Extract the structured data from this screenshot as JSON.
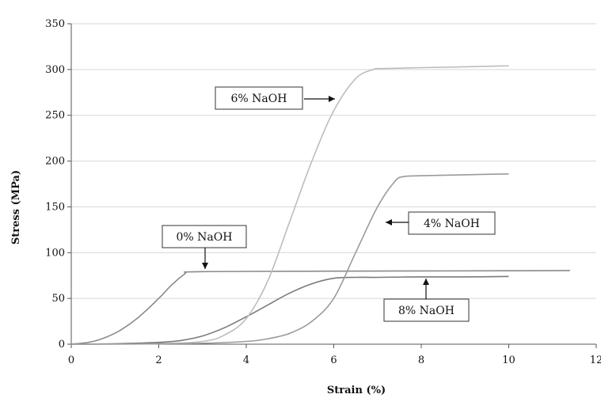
{
  "chart_data": {
    "type": "line",
    "title": "",
    "xlabel": "Strain (%)",
    "ylabel": "Stress (MPa)",
    "xlim": [
      0,
      12
    ],
    "ylim": [
      0,
      350
    ],
    "xticks": [
      0,
      2,
      4,
      6,
      8,
      10,
      12
    ],
    "yticks": [
      0,
      50,
      100,
      150,
      200,
      250,
      300,
      350
    ],
    "grid": "horizontal",
    "legend": "none",
    "series": [
      {
        "name": "0% NaOH",
        "color": "#8a8a8a",
        "x": [
          0,
          0.5,
          1.0,
          1.5,
          2.0,
          2.3,
          2.6,
          2.7,
          4,
          6,
          8,
          10,
          11.4
        ],
        "y": [
          0,
          3,
          12,
          28,
          50,
          65,
          77,
          79,
          79.5,
          79.8,
          80,
          80.2,
          80.5
        ]
      },
      {
        "name": "8% NaOH",
        "color": "#7a7a7a",
        "x": [
          0,
          1,
          2,
          2.5,
          3,
          3.5,
          4,
          4.5,
          5,
          5.5,
          6,
          6.5,
          7,
          8,
          9,
          10
        ],
        "y": [
          0,
          0.5,
          2,
          4,
          9,
          18,
          30,
          43,
          56,
          66,
          72,
          73,
          73,
          73.5,
          73.5,
          74
        ]
      },
      {
        "name": "6% NaOH",
        "color": "#bdbdbd",
        "x": [
          0,
          2,
          3,
          3.5,
          4,
          4.5,
          5,
          5.5,
          6,
          6.5,
          6.9,
          7.1,
          8,
          9,
          10
        ],
        "y": [
          0,
          0.5,
          3,
          10,
          28,
          70,
          135,
          200,
          255,
          290,
          300,
          301,
          302,
          303,
          304
        ]
      },
      {
        "name": "4% NaOH",
        "color": "#9a9a9a",
        "x": [
          0,
          2,
          3,
          4,
          4.5,
          5,
          5.5,
          6,
          6.5,
          7,
          7.4,
          7.6,
          8,
          9,
          10
        ],
        "y": [
          0,
          0.5,
          1,
          3,
          6,
          12,
          25,
          50,
          100,
          150,
          178,
          183,
          184,
          185,
          186
        ]
      }
    ],
    "annotations": [
      {
        "text": "6% NaOH",
        "arrow": "right"
      },
      {
        "text": "0% NaOH",
        "arrow": "down"
      },
      {
        "text": "4% NaOH",
        "arrow": "left"
      },
      {
        "text": "8% NaOH",
        "arrow": "up"
      }
    ]
  }
}
